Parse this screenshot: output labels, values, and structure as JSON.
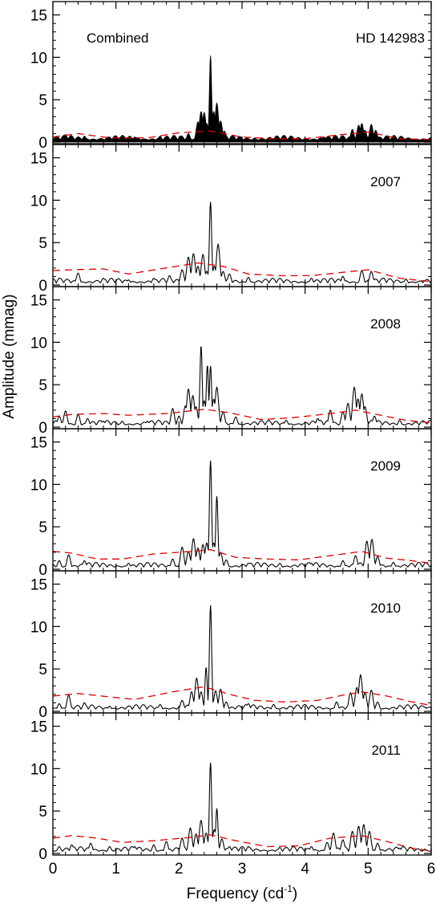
{
  "chart_data": {
    "type": "line",
    "xlabel_main": "Frequency (cd",
    "xlabel_sup": "-1",
    "xlabel_close": ")",
    "ylabel": "Amplitude (mmag)",
    "xlim": [
      0,
      6
    ],
    "ylim": [
      0,
      16
    ],
    "x_ticks": [
      "0",
      "1",
      "2",
      "3",
      "4",
      "5",
      "6"
    ],
    "y_ticks": [
      "0",
      "5",
      "10",
      "15"
    ],
    "colors": {
      "periodogram": "#000000",
      "noise_threshold": "#dd0000"
    },
    "panels": [
      {
        "label": "Combined",
        "star": "HD 142983",
        "filled": true,
        "peaks": [
          [
            0.2,
            0.9
          ],
          [
            0.5,
            0.7
          ],
          [
            0.9,
            0.6
          ],
          [
            1.3,
            0.6
          ],
          [
            1.7,
            0.7
          ],
          [
            2.15,
            1.0
          ],
          [
            2.3,
            2.4
          ],
          [
            2.35,
            3.6
          ],
          [
            2.4,
            3.5
          ],
          [
            2.44,
            2.2
          ],
          [
            2.5,
            10.2
          ],
          [
            2.55,
            3.6
          ],
          [
            2.6,
            4.6
          ],
          [
            2.66,
            2.5
          ],
          [
            2.72,
            1.3
          ],
          [
            3.2,
            0.5
          ],
          [
            3.8,
            0.5
          ],
          [
            4.3,
            0.6
          ],
          [
            4.75,
            1.5
          ],
          [
            4.85,
            2.0
          ],
          [
            4.9,
            2.2
          ],
          [
            4.95,
            1.4
          ],
          [
            5.05,
            2.1
          ],
          [
            5.12,
            1.4
          ],
          [
            5.5,
            0.5
          ]
        ],
        "noise": [
          [
            0,
            0.6
          ],
          [
            0.4,
            1.0
          ],
          [
            0.9,
            0.5
          ],
          [
            1.5,
            0.5
          ],
          [
            2.0,
            1.1
          ],
          [
            2.5,
            1.3
          ],
          [
            3.0,
            0.6
          ],
          [
            3.5,
            0.4
          ],
          [
            4.0,
            0.4
          ],
          [
            4.6,
            0.9
          ],
          [
            5.0,
            1.2
          ],
          [
            5.5,
            0.4
          ],
          [
            6.0,
            0.3
          ]
        ]
      },
      {
        "label": "2007",
        "filled": false,
        "peaks": [
          [
            0.1,
            0.8
          ],
          [
            0.4,
            1.4
          ],
          [
            0.8,
            0.8
          ],
          [
            1.2,
            0.6
          ],
          [
            1.6,
            0.8
          ],
          [
            1.85,
            1.1
          ],
          [
            2.05,
            1.8
          ],
          [
            2.15,
            3.3
          ],
          [
            2.23,
            3.7
          ],
          [
            2.3,
            2.2
          ],
          [
            2.38,
            3.6
          ],
          [
            2.44,
            1.6
          ],
          [
            2.5,
            9.8
          ],
          [
            2.56,
            2.2
          ],
          [
            2.62,
            4.8
          ],
          [
            2.7,
            1.6
          ],
          [
            2.8,
            1.3
          ],
          [
            3.1,
            0.9
          ],
          [
            3.6,
            0.8
          ],
          [
            4.1,
            0.8
          ],
          [
            4.6,
            1.0
          ],
          [
            4.9,
            1.7
          ],
          [
            5.05,
            1.6
          ],
          [
            5.25,
            0.8
          ],
          [
            5.6,
            0.7
          ],
          [
            5.9,
            0.5
          ]
        ],
        "noise": [
          [
            0,
            1.7
          ],
          [
            0.3,
            1.8
          ],
          [
            0.8,
            1.9
          ],
          [
            1.2,
            1.3
          ],
          [
            1.7,
            1.9
          ],
          [
            2.3,
            2.6
          ],
          [
            2.7,
            2.2
          ],
          [
            3.1,
            1.3
          ],
          [
            3.6,
            1.1
          ],
          [
            4.1,
            1.1
          ],
          [
            4.6,
            1.5
          ],
          [
            5.0,
            1.8
          ],
          [
            5.5,
            0.8
          ],
          [
            6.0,
            0.4
          ]
        ]
      },
      {
        "label": "2008",
        "filled": false,
        "peaks": [
          [
            0.1,
            1.3
          ],
          [
            0.2,
            1.9
          ],
          [
            0.4,
            1.5
          ],
          [
            0.55,
            1.0
          ],
          [
            0.8,
            0.7
          ],
          [
            1.1,
            0.7
          ],
          [
            1.5,
            0.7
          ],
          [
            1.9,
            2.2
          ],
          [
            2.0,
            1.3
          ],
          [
            2.1,
            2.5
          ],
          [
            2.15,
            4.5
          ],
          [
            2.22,
            3.7
          ],
          [
            2.27,
            2.4
          ],
          [
            2.35,
            9.6
          ],
          [
            2.4,
            3.1
          ],
          [
            2.45,
            7.3
          ],
          [
            2.5,
            7.2
          ],
          [
            2.55,
            3.3
          ],
          [
            2.6,
            4.7
          ],
          [
            2.7,
            1.8
          ],
          [
            2.9,
            1.2
          ],
          [
            3.3,
            0.7
          ],
          [
            3.7,
            0.8
          ],
          [
            4.2,
            1.0
          ],
          [
            4.4,
            2.0
          ],
          [
            4.6,
            1.8
          ],
          [
            4.68,
            2.8
          ],
          [
            4.78,
            4.7
          ],
          [
            4.84,
            3.3
          ],
          [
            4.9,
            3.9
          ],
          [
            4.95,
            2.4
          ],
          [
            5.1,
            1.3
          ],
          [
            5.5,
            0.8
          ],
          [
            5.9,
            0.6
          ]
        ],
        "noise": [
          [
            0,
            1.2
          ],
          [
            0.3,
            1.5
          ],
          [
            0.8,
            1.6
          ],
          [
            1.2,
            1.4
          ],
          [
            1.8,
            1.6
          ],
          [
            2.4,
            2.1
          ],
          [
            2.8,
            1.7
          ],
          [
            3.3,
            0.9
          ],
          [
            3.8,
            1.1
          ],
          [
            4.4,
            1.6
          ],
          [
            4.8,
            2.0
          ],
          [
            5.2,
            1.4
          ],
          [
            5.6,
            0.8
          ],
          [
            6.0,
            0.5
          ]
        ]
      },
      {
        "label": "2009",
        "filled": false,
        "peaks": [
          [
            0.1,
            1.0
          ],
          [
            0.25,
            1.7
          ],
          [
            0.5,
            1.0
          ],
          [
            0.8,
            0.6
          ],
          [
            1.2,
            0.7
          ],
          [
            1.6,
            0.7
          ],
          [
            1.9,
            1.2
          ],
          [
            2.05,
            2.6
          ],
          [
            2.15,
            2.1
          ],
          [
            2.23,
            3.6
          ],
          [
            2.3,
            2.5
          ],
          [
            2.38,
            2.9
          ],
          [
            2.44,
            3.1
          ],
          [
            2.5,
            12.8
          ],
          [
            2.55,
            3.1
          ],
          [
            2.6,
            8.6
          ],
          [
            2.66,
            2.0
          ],
          [
            2.75,
            1.1
          ],
          [
            3.1,
            0.7
          ],
          [
            3.6,
            0.7
          ],
          [
            4.1,
            0.7
          ],
          [
            4.6,
            1.0
          ],
          [
            4.8,
            1.6
          ],
          [
            4.98,
            3.3
          ],
          [
            5.06,
            3.5
          ],
          [
            5.15,
            1.5
          ],
          [
            5.4,
            0.8
          ],
          [
            5.8,
            0.6
          ]
        ],
        "noise": [
          [
            0,
            2.1
          ],
          [
            0.3,
            1.9
          ],
          [
            0.7,
            1.2
          ],
          [
            1.1,
            1.2
          ],
          [
            1.6,
            1.8
          ],
          [
            2.2,
            2.1
          ],
          [
            2.5,
            2.3
          ],
          [
            2.9,
            1.4
          ],
          [
            3.4,
            1.2
          ],
          [
            3.9,
            1.1
          ],
          [
            4.4,
            1.6
          ],
          [
            4.9,
            2.1
          ],
          [
            5.3,
            1.3
          ],
          [
            5.7,
            1.0
          ],
          [
            6.0,
            0.7
          ]
        ]
      },
      {
        "label": "2010",
        "filled": false,
        "peaks": [
          [
            0.1,
            0.9
          ],
          [
            0.25,
            1.9
          ],
          [
            0.5,
            1.0
          ],
          [
            0.9,
            0.6
          ],
          [
            1.3,
            0.6
          ],
          [
            1.7,
            0.8
          ],
          [
            2.05,
            1.3
          ],
          [
            2.2,
            2.3
          ],
          [
            2.28,
            3.9
          ],
          [
            2.35,
            2.3
          ],
          [
            2.43,
            5.2
          ],
          [
            2.5,
            12.5
          ],
          [
            2.58,
            2.4
          ],
          [
            2.66,
            2.6
          ],
          [
            2.75,
            1.1
          ],
          [
            3.1,
            0.9
          ],
          [
            3.5,
            0.8
          ],
          [
            4.0,
            0.8
          ],
          [
            4.5,
            1.1
          ],
          [
            4.72,
            2.2
          ],
          [
            4.82,
            2.8
          ],
          [
            4.88,
            4.3
          ],
          [
            4.95,
            2.2
          ],
          [
            5.05,
            2.5
          ],
          [
            5.15,
            1.1
          ],
          [
            5.5,
            0.7
          ],
          [
            5.9,
            0.5
          ]
        ],
        "noise": [
          [
            0,
            1.8
          ],
          [
            0.4,
            2.1
          ],
          [
            0.9,
            1.7
          ],
          [
            1.3,
            1.4
          ],
          [
            1.9,
            2.3
          ],
          [
            2.4,
            2.9
          ],
          [
            2.8,
            2.0
          ],
          [
            3.2,
            1.3
          ],
          [
            3.7,
            1.1
          ],
          [
            4.2,
            1.3
          ],
          [
            4.6,
            1.9
          ],
          [
            4.9,
            2.3
          ],
          [
            5.3,
            1.8
          ],
          [
            5.7,
            1.1
          ],
          [
            6.0,
            0.7
          ]
        ]
      },
      {
        "label": "2011",
        "filled": false,
        "peaks": [
          [
            0.1,
            0.8
          ],
          [
            0.3,
            1.0
          ],
          [
            0.6,
            1.2
          ],
          [
            0.9,
            0.8
          ],
          [
            1.3,
            0.8
          ],
          [
            1.6,
            1.0
          ],
          [
            1.8,
            1.4
          ],
          [
            2.05,
            1.8
          ],
          [
            2.18,
            3.0
          ],
          [
            2.27,
            2.3
          ],
          [
            2.35,
            3.9
          ],
          [
            2.43,
            2.4
          ],
          [
            2.5,
            10.7
          ],
          [
            2.56,
            2.8
          ],
          [
            2.6,
            5.3
          ],
          [
            2.68,
            1.7
          ],
          [
            2.8,
            0.8
          ],
          [
            3.1,
            0.8
          ],
          [
            3.6,
            0.7
          ],
          [
            4.1,
            0.8
          ],
          [
            4.35,
            1.3
          ],
          [
            4.45,
            2.4
          ],
          [
            4.6,
            1.6
          ],
          [
            4.75,
            2.6
          ],
          [
            4.85,
            3.2
          ],
          [
            4.93,
            3.4
          ],
          [
            5.02,
            2.6
          ],
          [
            5.15,
            1.2
          ],
          [
            5.5,
            0.6
          ],
          [
            5.9,
            0.5
          ]
        ],
        "noise": [
          [
            0,
            1.8
          ],
          [
            0.3,
            2.1
          ],
          [
            0.7,
            1.8
          ],
          [
            1.1,
            1.3
          ],
          [
            1.6,
            1.5
          ],
          [
            2.2,
            1.9
          ],
          [
            2.5,
            2.2
          ],
          [
            2.9,
            1.5
          ],
          [
            3.4,
            0.8
          ],
          [
            3.9,
            0.9
          ],
          [
            4.4,
            1.8
          ],
          [
            4.9,
            2.1
          ],
          [
            5.3,
            1.4
          ],
          [
            5.7,
            0.6
          ],
          [
            6.0,
            0.3
          ]
        ]
      }
    ]
  }
}
